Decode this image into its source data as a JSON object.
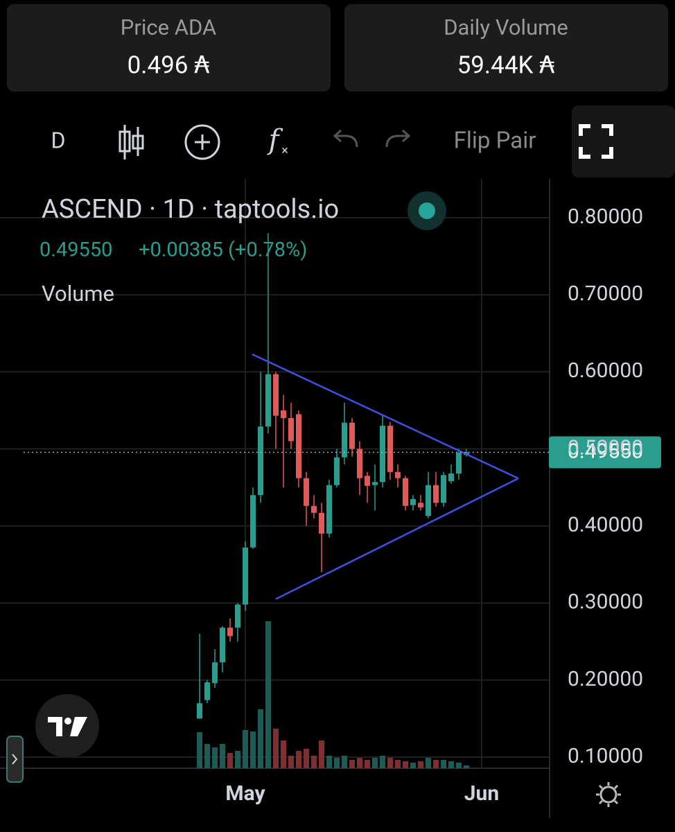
{
  "stats": {
    "price_label": "Price ADA",
    "price_value": "0.496 ₳",
    "volume_label": "Daily Volume",
    "volume_value": "59.44K ₳"
  },
  "toolbar": {
    "interval": "D",
    "flip": "Flip Pair"
  },
  "chart_data": {
    "type": "candlestick",
    "title": "ASCEND · 1D · taptools.io",
    "last": "0.49550",
    "change": "+0.00385 (+0.78%)",
    "volume_title": "Volume",
    "categories": [
      null,
      null,
      null,
      null,
      null,
      null,
      "May",
      null,
      null,
      null,
      null,
      null,
      null,
      null,
      null,
      null,
      null,
      null,
      null,
      null,
      null,
      null,
      null,
      null,
      null,
      null,
      null,
      null,
      null,
      null,
      null,
      null,
      null,
      null,
      null,
      null,
      null,
      "Jun"
    ],
    "open": [
      0.15,
      0.174,
      0.196,
      0.223,
      0.268,
      0.268,
      0.298,
      0.372,
      0.44,
      0.529,
      0.597,
      0.55,
      0.54,
      0.545,
      0.462,
      0.426,
      0.417,
      0.39,
      0.453,
      0.489,
      0.534,
      0.5,
      0.465,
      0.453,
      0.457,
      0.53,
      0.47,
      0.462,
      0.427,
      0.43,
      0.413,
      0.453,
      0.43,
      0.458,
      0.468,
      0.492,
      null,
      null
    ],
    "high": [
      0.26,
      0.2,
      0.24,
      0.27,
      0.28,
      0.3,
      0.38,
      0.45,
      0.6,
      0.78,
      0.6,
      0.57,
      0.56,
      0.55,
      0.47,
      0.44,
      0.43,
      0.46,
      0.5,
      0.56,
      0.54,
      0.51,
      0.47,
      0.48,
      0.545,
      0.535,
      0.48,
      0.465,
      0.44,
      0.44,
      0.47,
      0.47,
      0.47,
      0.48,
      0.5,
      0.5,
      null,
      null
    ],
    "low": [
      0.15,
      0.17,
      0.19,
      0.21,
      0.25,
      0.25,
      0.29,
      0.37,
      0.43,
      0.52,
      0.5,
      0.45,
      0.5,
      0.45,
      0.4,
      0.41,
      0.34,
      0.385,
      0.45,
      0.48,
      0.49,
      0.44,
      0.43,
      0.42,
      0.45,
      0.46,
      0.45,
      0.42,
      0.42,
      0.42,
      0.41,
      0.425,
      0.425,
      0.455,
      0.46,
      0.49,
      null,
      null
    ],
    "close": [
      0.17,
      0.197,
      0.223,
      0.268,
      0.257,
      0.298,
      0.372,
      0.44,
      0.529,
      0.597,
      0.543,
      0.54,
      0.51,
      0.462,
      0.426,
      0.417,
      0.39,
      0.453,
      0.489,
      0.534,
      0.5,
      0.462,
      0.452,
      0.457,
      0.53,
      0.47,
      0.462,
      0.426,
      0.435,
      0.424,
      0.453,
      0.43,
      0.466,
      0.468,
      0.495,
      0.4955,
      null,
      null
    ],
    "volume": [
      52,
      35,
      30,
      35,
      22,
      25,
      55,
      53,
      85,
      212,
      57,
      40,
      18,
      25,
      28,
      18,
      40,
      18,
      15,
      18,
      12,
      15,
      12,
      15,
      18,
      15,
      12,
      10,
      8,
      10,
      15,
      12,
      12,
      10,
      8,
      4,
      null,
      null
    ],
    "up_color": "#2a9d8f",
    "down_color": "#e05a5a",
    "volume_up_color": "#1d5c55",
    "volume_down_color": "#7d2f33",
    "ylim": [
      0.0856,
      0.8486
    ],
    "yticks": [
      {
        "value": 0.8,
        "label": "0.80000"
      },
      {
        "value": 0.7,
        "label": "0.70000"
      },
      {
        "value": 0.6,
        "label": "0.60000"
      },
      {
        "value": 0.5,
        "label": "0.50000"
      },
      {
        "value": 0.4,
        "label": "0.40000"
      },
      {
        "value": 0.3,
        "label": "0.30000"
      },
      {
        "value": 0.2,
        "label": "0.20000"
      },
      {
        "value": 0.1,
        "label": "0.10000"
      }
    ],
    "price_line": {
      "value": 0.4955,
      "label": "0.49550"
    },
    "grid": true
  }
}
